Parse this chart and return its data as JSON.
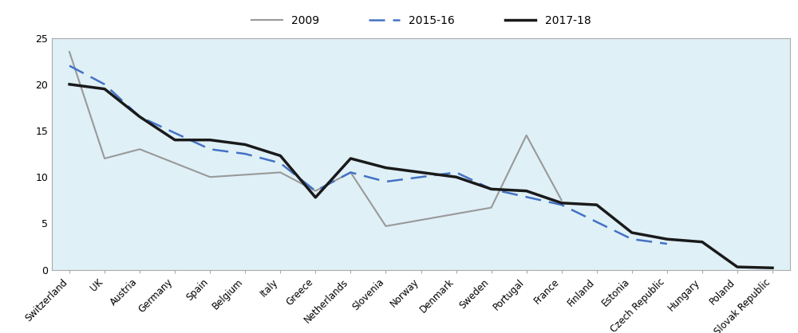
{
  "countries": [
    "Switzerland",
    "UK",
    "Austria",
    "Germany",
    "Spain",
    "Belgium",
    "Italy",
    "Greece",
    "Netherlands",
    "Slovenia",
    "Norway",
    "Denmark",
    "Sweden",
    "Portugal",
    "France",
    "Finland",
    "Estonia",
    "Czech Republic",
    "Hungary",
    "Poland",
    "Slovak Republic"
  ],
  "series_2009": [
    23.5,
    12.0,
    13.0,
    null,
    10.0,
    null,
    10.5,
    8.5,
    10.5,
    4.7,
    null,
    null,
    6.7,
    14.5,
    7.5,
    null,
    null,
    null,
    null,
    null,
    null
  ],
  "series_2015_16": [
    22.0,
    20.0,
    16.5,
    null,
    13.0,
    12.5,
    11.5,
    8.5,
    10.5,
    9.5,
    10.0,
    10.5,
    8.7,
    null,
    7.0,
    null,
    3.3,
    2.8,
    null,
    null,
    null
  ],
  "series_2017_18": [
    20.0,
    19.5,
    16.5,
    14.0,
    14.0,
    13.5,
    12.3,
    7.8,
    12.0,
    11.0,
    10.5,
    10.0,
    8.7,
    8.5,
    7.2,
    7.0,
    4.0,
    3.3,
    3.0,
    0.3,
    0.2
  ],
  "color_2009": "#999999",
  "color_2015": "#4472C4",
  "color_2017": "#1a1a1a",
  "plot_bg": "#dff0f7",
  "legend_bg": "#d9d9d9",
  "fig_bg": "#ffffff",
  "ylim": [
    0,
    25
  ],
  "yticks": [
    0,
    5,
    10,
    15,
    20,
    25
  ],
  "legend_labels": [
    "2009",
    "2015-16",
    "2017-18"
  ]
}
